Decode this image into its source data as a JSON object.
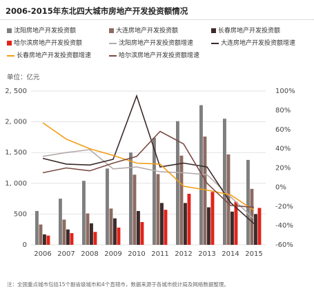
{
  "title": "2006-2015年东北四大城市房地产开发投资额情况",
  "unit_label": "单位：亿元",
  "note": "注：全国重点城市包括15个副省级城市和4个直辖市，数据来源于各城市统计局及网络数据整理。",
  "colors": {
    "shenyang_bar": "#7f7f7f",
    "dalian_bar": "#8c6b61",
    "changchun_bar": "#3d2b2b",
    "harbin_bar": "#e2231a",
    "shenyang_line": "#b5aaa8",
    "dalian_line": "#3a2828",
    "changchun_line": "#f39c12",
    "harbin_line": "#7a4a42"
  },
  "chart_data": {
    "type": "bar",
    "categories": [
      "2006",
      "2007",
      "2008",
      "2009",
      "2010",
      "2011",
      "2012",
      "2013",
      "2014",
      "2015"
    ],
    "ylim": [
      0,
      2500
    ],
    "y2lim": [
      -0.6,
      1.0
    ],
    "yticks": [
      "0",
      "500",
      "1, 000",
      "1, 500",
      "2, 000",
      "2, 500"
    ],
    "y2ticks": [
      "-60%",
      "-40%",
      "-20%",
      "0%",
      "20%",
      "40%",
      "60%",
      "80%",
      "100%"
    ],
    "series": [
      {
        "name": "沈阳房地产开发投资额",
        "kind": "bar",
        "values": [
          550,
          750,
          1040,
          1240,
          1500,
          1740,
          2010,
          2270,
          2050,
          1380
        ]
      },
      {
        "name": "大连房地产开发投资额",
        "kind": "bar",
        "values": [
          330,
          410,
          510,
          590,
          1140,
          1150,
          1450,
          1760,
          1470,
          910
        ]
      },
      {
        "name": "长春房地产开发投资额",
        "kind": "bar",
        "values": [
          170,
          250,
          350,
          430,
          550,
          680,
          680,
          610,
          540,
          500
        ]
      },
      {
        "name": "哈尔滨房地产开发投资额",
        "kind": "bar",
        "values": [
          150,
          190,
          210,
          280,
          370,
          570,
          830,
          860,
          700,
          600
        ]
      },
      {
        "name": "沈阳房地产开发投资额增速",
        "kind": "line",
        "values": [
          0.32,
          0.36,
          0.39,
          0.19,
          0.21,
          0.16,
          0.15,
          0.13,
          -0.1,
          -0.33
        ]
      },
      {
        "name": "大连房地产开发投资额增速",
        "kind": "line",
        "values": [
          0.3,
          0.24,
          0.23,
          0.29,
          0.95,
          0.21,
          0.25,
          0.21,
          -0.16,
          -0.38
        ]
      },
      {
        "name": "长春房地产开发投资额增速",
        "kind": "line",
        "values": [
          0.67,
          0.5,
          0.4,
          0.33,
          0.25,
          0.24,
          0.01,
          -0.03,
          -0.08,
          -0.24
        ]
      },
      {
        "name": "哈尔滨房地产开发投资额增速",
        "kind": "line",
        "values": [
          0.15,
          0.2,
          0.17,
          0.25,
          0.32,
          0.58,
          0.45,
          0.04,
          -0.19,
          -0.21
        ]
      }
    ]
  }
}
